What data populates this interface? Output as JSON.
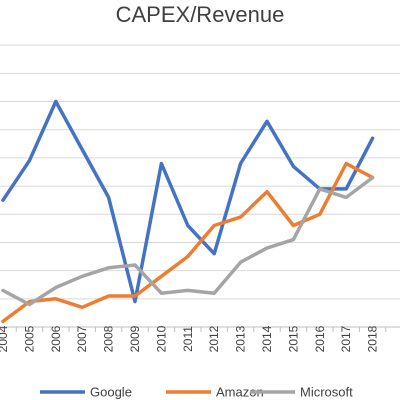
{
  "chart_data": {
    "type": "line",
    "title": "CAPEX/Revenue",
    "xlabel": "",
    "ylabel": "",
    "x": [
      "2004",
      "2005",
      "2006",
      "2007",
      "2008",
      "2009",
      "2010",
      "2011",
      "2012",
      "2013",
      "2014",
      "2015",
      "2016",
      "2017",
      "2018"
    ],
    "ylim": [
      0,
      11
    ],
    "grid": true,
    "legend_position": "bottom",
    "series": [
      {
        "name": "Google",
        "color": "#4472C4",
        "values": [
          4.5,
          5.9,
          8.0,
          6.3,
          4.6,
          0.9,
          5.8,
          3.6,
          2.6,
          5.8,
          7.3,
          5.7,
          4.9,
          4.9,
          6.7
        ]
      },
      {
        "name": "Amazon",
        "color": "#ED7D31",
        "values": [
          0.2,
          0.9,
          1.0,
          0.7,
          1.1,
          1.1,
          1.8,
          2.5,
          3.6,
          3.9,
          4.8,
          3.6,
          4.0,
          5.8,
          5.3
        ]
      },
      {
        "name": "Microsoft",
        "color": "#A5A5A5",
        "values": [
          1.3,
          0.8,
          1.4,
          1.8,
          2.1,
          2.2,
          1.2,
          1.3,
          1.2,
          2.3,
          2.8,
          3.1,
          4.9,
          4.6,
          5.3
        ]
      }
    ]
  }
}
